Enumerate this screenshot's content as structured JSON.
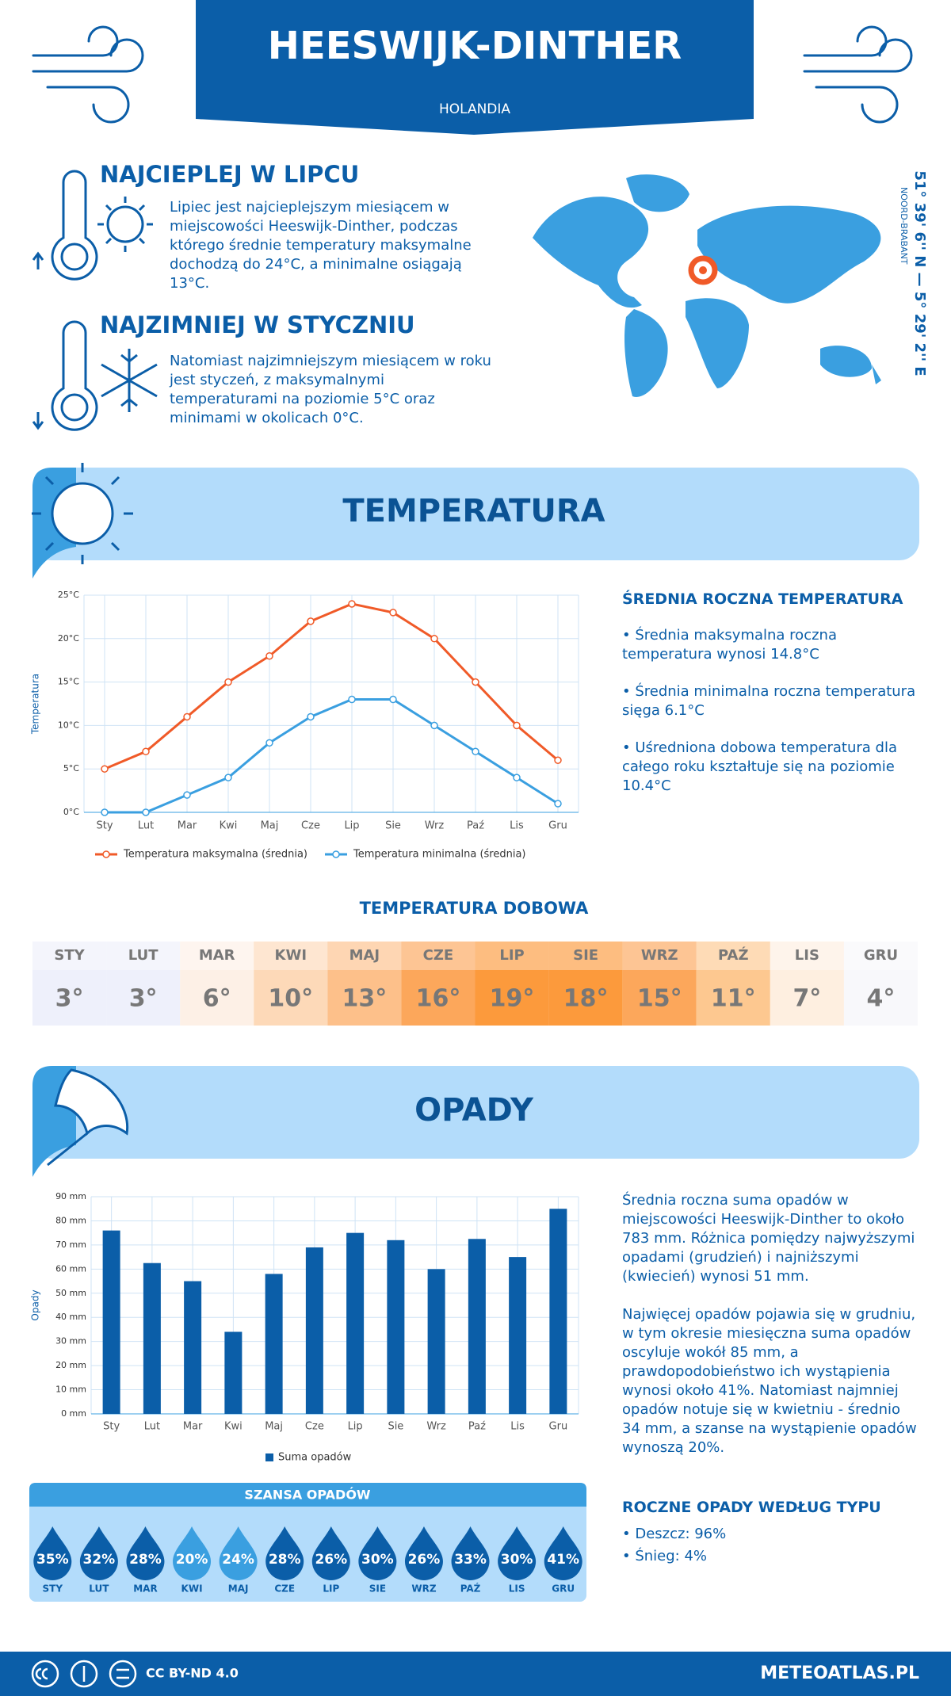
{
  "header": {
    "title": "HEESWIJK-DINTHER",
    "country": "HOLANDIA"
  },
  "location": {
    "coordinates": "51° 39' 6'' N — 5° 29' 2'' E",
    "region": "NOORD-BRABANT"
  },
  "warmest": {
    "title": "NAJCIEPLEJ W LIPCU",
    "text": "Lipiec jest najcieplejszym miesiącem w miejscowości Heeswijk-Dinther, podczas którego średnie temperatury maksymalne dochodzą do 24°C, a minimalne osiągają 13°C."
  },
  "coldest": {
    "title": "NAJZIMNIEJ W STYCZNIU",
    "text": "Natomiast najzimniejszym miesiącem w roku jest styczeń, z maksymalnymi temperaturami na poziomie 5°C oraz minimami w okolicach 0°C."
  },
  "temperature_section": {
    "title": "TEMPERATURA",
    "summary_title": "ŚREDNIA ROCZNA TEMPERATURA",
    "bullets": [
      "• Średnia maksymalna roczna temperatura wynosi 14.8°C",
      "• Średnia minimalna roczna temperatura sięga 6.1°C",
      "• Uśredniona dobowa temperatura dla całego roku kształtuje się na poziomie 10.4°C"
    ]
  },
  "chart_data": [
    {
      "type": "line",
      "ylabel": "Temperatura",
      "categories": [
        "Sty",
        "Lut",
        "Mar",
        "Kwi",
        "Maj",
        "Cze",
        "Lip",
        "Sie",
        "Wrz",
        "Paź",
        "Lis",
        "Gru"
      ],
      "series": [
        {
          "name": "Temperatura maksymalna (średnia)",
          "color": "#f05a28",
          "values": [
            5,
            7,
            11,
            15,
            18,
            22,
            24,
            23,
            20,
            15,
            10,
            6
          ]
        },
        {
          "name": "Temperatura minimalna (średnia)",
          "color": "#3a9fe0",
          "values": [
            0,
            0,
            2,
            4,
            8,
            11,
            13,
            13,
            10,
            7,
            4,
            1
          ]
        }
      ],
      "ylim": [
        0,
        25
      ],
      "yticks": [
        {
          "value": 0,
          "label": "0°C"
        },
        {
          "value": 5,
          "label": "5°C"
        },
        {
          "value": 10,
          "label": "10°C"
        },
        {
          "value": 15,
          "label": "15°C"
        },
        {
          "value": 20,
          "label": "20°C"
        },
        {
          "value": 25,
          "label": "25°C"
        }
      ],
      "grid": true
    },
    {
      "type": "bar",
      "ylabel": "Opady",
      "categories": [
        "Sty",
        "Lut",
        "Mar",
        "Kwi",
        "Maj",
        "Cze",
        "Lip",
        "Sie",
        "Wrz",
        "Paź",
        "Lis",
        "Gru"
      ],
      "series": [
        {
          "name": "Suma opadów",
          "color": "#0b5ea8",
          "values": [
            76,
            62.5,
            55,
            34,
            58,
            69,
            75,
            72,
            60,
            72.5,
            65,
            85
          ]
        }
      ],
      "ylim": [
        0,
        90
      ],
      "yticks": [
        {
          "value": 0,
          "label": "0 mm"
        },
        {
          "value": 10,
          "label": "10 mm"
        },
        {
          "value": 20,
          "label": "20 mm"
        },
        {
          "value": 30,
          "label": "30 mm"
        },
        {
          "value": 40,
          "label": "40 mm"
        },
        {
          "value": 50,
          "label": "50 mm"
        },
        {
          "value": 60,
          "label": "60 mm"
        },
        {
          "value": 70,
          "label": "70 mm"
        },
        {
          "value": 80,
          "label": "80 mm"
        },
        {
          "value": 90,
          "label": "90 mm"
        }
      ],
      "grid": true
    }
  ],
  "daily": {
    "title": "TEMPERATURA DOBOWA",
    "months": [
      "STY",
      "LUT",
      "MAR",
      "KWI",
      "MAJ",
      "CZE",
      "LIP",
      "SIE",
      "WRZ",
      "PAŹ",
      "LIS",
      "GRU"
    ],
    "values": [
      "3°",
      "3°",
      "6°",
      "10°",
      "13°",
      "16°",
      "19°",
      "18°",
      "15°",
      "11°",
      "7°",
      "4°"
    ],
    "colors": [
      "#eef0fb",
      "#eef0fb",
      "#fdf0e6",
      "#fdd9b8",
      "#fdc08a",
      "#fca75b",
      "#fc9a3c",
      "#fc9a3c",
      "#fca75b",
      "#fdc890",
      "#feefe0",
      "#f8f8fb"
    ]
  },
  "precipitation_section": {
    "title": "OPADY",
    "paragraphs": [
      "Średnia roczna suma opadów w miejscowości Heeswijk-Dinther to około 783 mm. Różnica pomiędzy najwyższymi opadami (grudzień) i najniższymi (kwiecień) wynosi 51 mm.",
      "Najwięcej opadów pojawia się w grudniu, w tym okresie miesięczna suma opadów oscyluje wokół 85 mm, a prawdopodobieństwo ich wystąpienia wynosi około 41%. Natomiast najmniej opadów notuje się w kwietniu - średnio 34 mm, a szanse na wystąpienie opadów wynoszą 20%."
    ],
    "by_type_title": "ROCZNE OPADY WEDŁUG TYPU",
    "by_type": [
      "• Deszcz: 96%",
      "• Śnieg: 4%"
    ]
  },
  "chance": {
    "title": "SZANSA OPADÓW",
    "months": [
      "STY",
      "LUT",
      "MAR",
      "KWI",
      "MAJ",
      "CZE",
      "LIP",
      "SIE",
      "WRZ",
      "PAŹ",
      "LIS",
      "GRU"
    ],
    "values": [
      "35%",
      "32%",
      "28%",
      "20%",
      "24%",
      "28%",
      "26%",
      "30%",
      "26%",
      "33%",
      "30%",
      "41%"
    ],
    "colors": [
      "#0b5ea8",
      "#0b5ea8",
      "#0b5ea8",
      "#3a9fe0",
      "#3a9fe0",
      "#0b5ea8",
      "#0b5ea8",
      "#0b5ea8",
      "#0b5ea8",
      "#0b5ea8",
      "#0b5ea8",
      "#0b5ea8"
    ]
  },
  "footer": {
    "license": "CC BY-ND 4.0",
    "site": "METEOATLAS.PL"
  }
}
